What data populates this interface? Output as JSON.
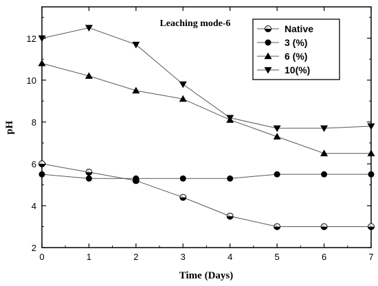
{
  "chart_data": {
    "type": "line",
    "title": "Leaching mode-6",
    "xlabel": "Time (Days)",
    "ylabel": "pH",
    "xlim": [
      0,
      7
    ],
    "ylim": [
      2,
      13.5
    ],
    "x_ticks": [
      0,
      1,
      2,
      3,
      4,
      5,
      6,
      7
    ],
    "y_ticks": [
      2,
      4,
      6,
      8,
      10,
      12
    ],
    "grid": false,
    "legend_position": "top-right",
    "x": [
      0,
      1,
      2,
      3,
      4,
      5,
      6,
      7
    ],
    "series": [
      {
        "name": "Native",
        "marker": "half-filled-circle",
        "values": [
          6.0,
          5.6,
          5.2,
          4.4,
          3.5,
          3.0,
          3.0,
          3.0
        ]
      },
      {
        "name": "3 (%)",
        "marker": "filled-circle",
        "values": [
          5.5,
          5.3,
          5.3,
          5.3,
          5.3,
          5.5,
          5.5,
          5.5
        ]
      },
      {
        "name": "6 (%)",
        "marker": "triangle-up",
        "values": [
          10.8,
          10.2,
          9.5,
          9.1,
          8.1,
          7.3,
          6.5,
          6.5
        ]
      },
      {
        "name": "10(%)",
        "marker": "triangle-down",
        "values": [
          12.0,
          12.5,
          11.7,
          9.8,
          8.2,
          7.7,
          7.7,
          7.8
        ]
      }
    ],
    "colors": {
      "line": "#555555",
      "marker": "#000000",
      "axis": "#000000"
    }
  }
}
